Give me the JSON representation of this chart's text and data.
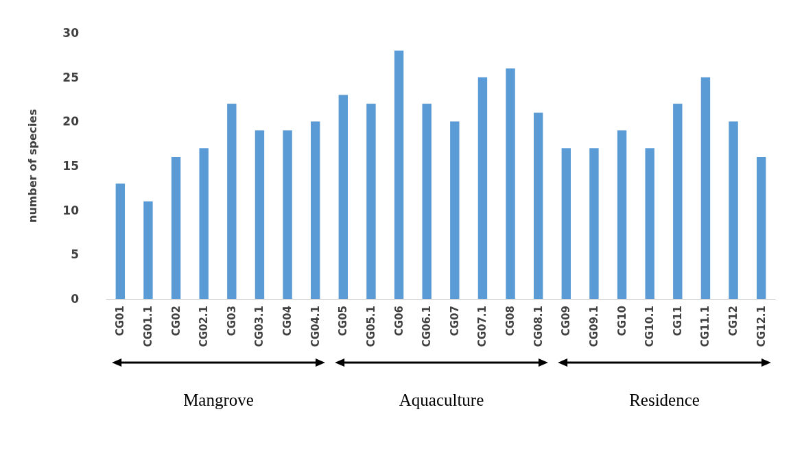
{
  "chart_data": {
    "type": "bar",
    "ylabel": "number of species",
    "categories": [
      "CG01",
      "CG01.1",
      "CG02",
      "CG02.1",
      "CG03",
      "CG03.1",
      "CG04",
      "CG04.1",
      "CG05",
      "CG05.1",
      "CG06",
      "CG06.1",
      "CG07",
      "CG07.1",
      "CG08",
      "CG08.1",
      "CG09",
      "CG09.1",
      "CG10",
      "CG10.1",
      "CG11",
      "CG11.1",
      "CG12",
      "CG12.1"
    ],
    "values": [
      13,
      11,
      16,
      17,
      22,
      19,
      19,
      20,
      23,
      22,
      28,
      22,
      20,
      25,
      26,
      21,
      17,
      17,
      19,
      17,
      22,
      25,
      20,
      16
    ],
    "color": "#5b9bd5",
    "ylim": [
      0,
      30
    ],
    "yticks": [
      0,
      5,
      10,
      15,
      20,
      25,
      30
    ],
    "grid": false,
    "annotations": [
      "Mangrove",
      "Aquaculture",
      "Residence"
    ]
  }
}
